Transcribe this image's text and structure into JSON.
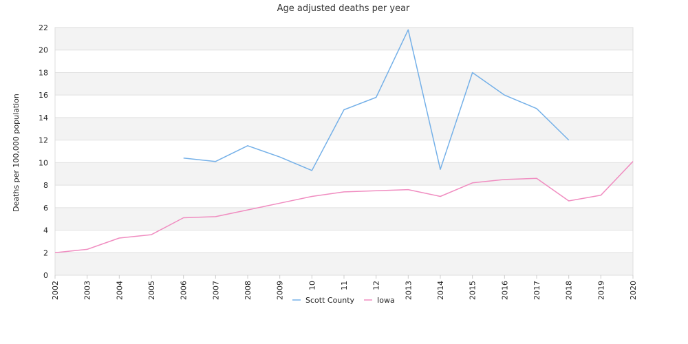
{
  "chart_data": {
    "type": "line",
    "title": "Age adjusted deaths per year",
    "xlabel": "",
    "ylabel": "Deaths per 100,000 population",
    "x": [
      "2002",
      "2003",
      "2004",
      "2005",
      "2006",
      "2007",
      "2008",
      "2009",
      "10",
      "11",
      "12",
      "2013",
      "2014",
      "2015",
      "2016",
      "2017",
      "2018",
      "2019",
      "2020"
    ],
    "ylim": [
      0,
      22
    ],
    "yticks": [
      0,
      2,
      4,
      6,
      8,
      10,
      12,
      14,
      16,
      18,
      20,
      22
    ],
    "grid": "banded-horizontal",
    "legend": "bottom-center",
    "series": [
      {
        "name": "Scott County",
        "color": "#74b0e8",
        "values": [
          null,
          null,
          null,
          null,
          10.4,
          10.1,
          11.5,
          10.5,
          9.3,
          14.7,
          15.8,
          21.8,
          9.4,
          18.0,
          16.0,
          14.8,
          12.0,
          null,
          null
        ]
      },
      {
        "name": "Iowa",
        "color": "#f08cc0",
        "values": [
          2.0,
          2.3,
          3.3,
          3.6,
          5.1,
          5.2,
          5.8,
          6.4,
          7.0,
          7.4,
          7.5,
          7.6,
          7.0,
          8.2,
          8.5,
          8.6,
          6.6,
          7.1,
          10.1
        ]
      }
    ]
  }
}
